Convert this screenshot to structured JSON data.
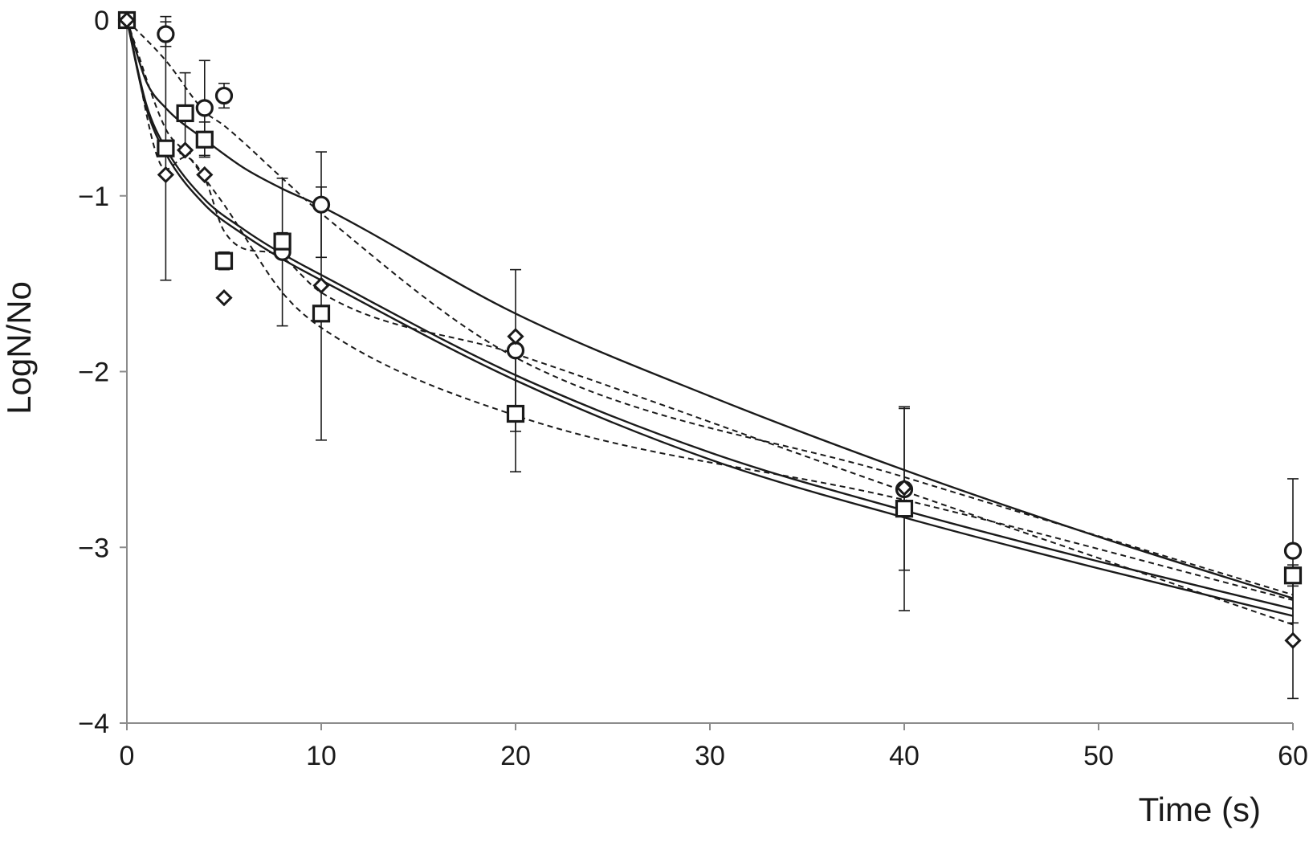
{
  "chart_data": {
    "type": "scatter",
    "title": "",
    "xlabel": "Time (s)",
    "ylabel": "LogN/No",
    "xlim": [
      0,
      60
    ],
    "ylim": [
      -4,
      0
    ],
    "x_ticks": [
      "0",
      "10",
      "20",
      "30",
      "40",
      "50",
      "60"
    ],
    "y_ticks": [
      "0",
      "−1",
      "−2",
      "−3",
      "−4"
    ],
    "grid": false,
    "legend": "none",
    "colors": {
      "ink": "#1a1a1a",
      "axis": "#8c8c8c",
      "background": "#ffffff"
    },
    "series": [
      {
        "marker": "circle",
        "points": [
          {
            "x": 0,
            "y": 0
          },
          {
            "x": 2,
            "y": -0.08,
            "err": 0.07
          },
          {
            "x": 4,
            "y": -0.5,
            "err": 0.27
          },
          {
            "x": 5,
            "y": -0.43,
            "err": 0.07
          },
          {
            "x": 8,
            "y": -1.32,
            "err": 0.42
          },
          {
            "x": 10,
            "y": -1.05,
            "err": 0.3
          },
          {
            "x": 20,
            "y": -1.88,
            "err": 0.46
          },
          {
            "x": 40,
            "y": -2.67,
            "err": 0.46
          },
          {
            "x": 60,
            "y": -3.02,
            "err": 0.41
          }
        ]
      },
      {
        "marker": "square",
        "points": [
          {
            "x": 0,
            "y": 0
          },
          {
            "x": 2,
            "y": -0.73,
            "err": 0.75
          },
          {
            "x": 3,
            "y": -0.53,
            "err": 0.23
          },
          {
            "x": 4,
            "y": -0.68,
            "err": 0.1
          },
          {
            "x": 5,
            "y": -1.37,
            "err": 0.05
          },
          {
            "x": 8,
            "y": -1.26,
            "err": 0.05
          },
          {
            "x": 10,
            "y": -1.67,
            "err": 0.72
          },
          {
            "x": 20,
            "y": -2.24,
            "err": 0.33
          },
          {
            "x": 40,
            "y": -2.78,
            "err": 0.58
          },
          {
            "x": 60,
            "y": -3.16,
            "err": 0.06
          }
        ]
      },
      {
        "marker": "diamond",
        "points": [
          {
            "x": 0,
            "y": 0
          },
          {
            "x": 2,
            "y": -0.88
          },
          {
            "x": 3,
            "y": -0.74
          },
          {
            "x": 4,
            "y": -0.88
          },
          {
            "x": 5,
            "y": -1.58
          },
          {
            "x": 10,
            "y": -1.51
          },
          {
            "x": 20,
            "y": -1.8
          },
          {
            "x": 40,
            "y": -2.66
          },
          {
            "x": 60,
            "y": -3.53,
            "err": 0.33
          }
        ]
      }
    ],
    "fit_lines": [
      {
        "style": "solid",
        "x": [
          0,
          1,
          2,
          4,
          6,
          8,
          10,
          20,
          30,
          40,
          50,
          60
        ],
        "y": [
          0,
          -0.35,
          -0.5,
          -0.68,
          -0.84,
          -0.96,
          -1.06,
          -1.67,
          -2.14,
          -2.56,
          -2.94,
          -3.29
        ]
      },
      {
        "style": "solid",
        "x": [
          0,
          1,
          2,
          4,
          6,
          8,
          10,
          20,
          30,
          40,
          50,
          60
        ],
        "y": [
          0,
          -0.48,
          -0.73,
          -1.02,
          -1.19,
          -1.33,
          -1.45,
          -2.02,
          -2.46,
          -2.79,
          -3.08,
          -3.35
        ]
      },
      {
        "style": "solid",
        "x": [
          0,
          1,
          2,
          4,
          6,
          8,
          10,
          20,
          30,
          40,
          50,
          60
        ],
        "y": [
          0,
          -0.5,
          -0.76,
          -1.05,
          -1.22,
          -1.36,
          -1.48,
          -2.05,
          -2.5,
          -2.83,
          -3.12,
          -3.39
        ]
      },
      {
        "style": "dashed",
        "x": [
          0,
          2,
          4,
          5,
          8,
          10,
          20,
          40,
          60
        ],
        "y": [
          0,
          -0.23,
          -0.52,
          -0.6,
          -0.9,
          -1.1,
          -1.92,
          -2.6,
          -3.27
        ]
      },
      {
        "style": "dashed",
        "x": [
          0,
          2,
          3,
          4,
          5,
          8,
          10,
          20,
          40,
          60
        ],
        "y": [
          0,
          -0.62,
          -0.75,
          -0.9,
          -1.05,
          -1.55,
          -1.75,
          -2.25,
          -2.73,
          -3.3
        ]
      },
      {
        "style": "dashed",
        "x": [
          0,
          2,
          3,
          4,
          5,
          8,
          10,
          20,
          40,
          60
        ],
        "y": [
          0,
          -0.85,
          -0.78,
          -0.9,
          -1.2,
          -1.35,
          -1.55,
          -1.9,
          -2.68,
          -3.44
        ]
      }
    ]
  }
}
